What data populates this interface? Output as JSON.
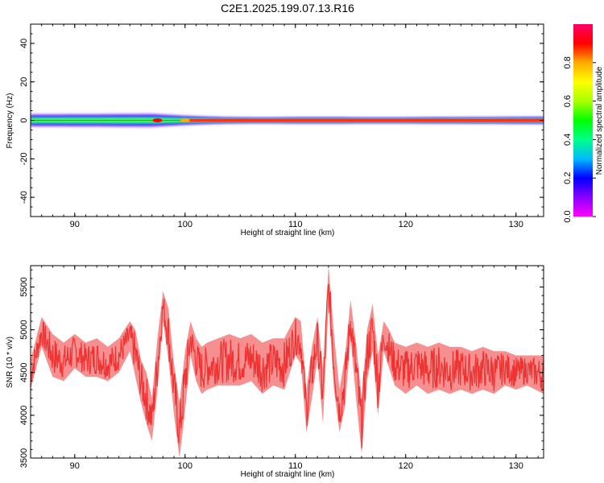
{
  "title": "C2E1.2025.199.07.13.R16",
  "chart_data": [
    {
      "type": "heatmap",
      "xlabel": "Height of straight line (km)",
      "ylabel": "Frequency (Hz)",
      "xlim": [
        86,
        132.5
      ],
      "ylim": [
        -50,
        50
      ],
      "xticks": [
        90,
        100,
        110,
        120,
        130
      ],
      "yticks": [
        -40,
        -20,
        0,
        20,
        40
      ],
      "colorbar": {
        "label": "Normalized spectral amplitude",
        "range": [
          0,
          1
        ],
        "ticks": [
          "0.0",
          "0.2",
          "0.4",
          "0.6",
          "0.8"
        ],
        "colors": [
          "#ff00ff",
          "#8800ff",
          "#0000ff",
          "#00bbff",
          "#00ff88",
          "#00ff00",
          "#aaff00",
          "#ffff00",
          "#ffaa00",
          "#ff0000",
          "#ff0066"
        ]
      },
      "band": {
        "x": [
          86,
          88,
          90,
          92,
          94,
          96,
          97,
          98,
          99,
          100,
          102,
          104,
          106,
          108,
          110,
          112,
          114,
          116,
          118,
          120,
          122,
          124,
          126,
          128,
          130,
          132.5
        ],
        "halfwidth_hz": [
          3.5,
          3.5,
          3.6,
          3.6,
          3.7,
          3.8,
          3.8,
          3.4,
          3.0,
          2.6,
          2.0,
          1.6,
          1.5,
          1.5,
          1.6,
          1.6,
          1.6,
          1.5,
          1.5,
          1.5,
          1.6,
          1.6,
          1.7,
          1.7,
          1.8,
          1.9
        ],
        "peak_amplitude": [
          0.45,
          0.45,
          0.48,
          0.5,
          0.5,
          0.55,
          0.8,
          0.7,
          0.6,
          0.7,
          0.85,
          0.9,
          0.92,
          0.92,
          0.93,
          0.92,
          0.9,
          0.9,
          0.93,
          0.93,
          0.92,
          0.92,
          0.91,
          0.91,
          0.9,
          0.9
        ]
      },
      "hotspots": [
        {
          "x": 97.5,
          "amplitude": 0.85
        },
        {
          "x": 100,
          "amplitude": 0.75
        }
      ]
    },
    {
      "type": "line",
      "xlabel": "Height of straight line (km)",
      "ylabel": "SNR (10 * v/v)",
      "xlim": [
        86,
        132.5
      ],
      "ylim": [
        3500,
        5750
      ],
      "xticks": [
        90,
        100,
        110,
        120,
        130
      ],
      "yticks": [
        3500,
        4000,
        4500,
        5000,
        5500
      ],
      "color": "#ee3333",
      "x": [
        86,
        87,
        88,
        89,
        90,
        91,
        92,
        93,
        94,
        95,
        95.5,
        96,
        96.5,
        97,
        97.5,
        98,
        98.5,
        99,
        99.5,
        100,
        100.5,
        101,
        101.5,
        102,
        103,
        104,
        105,
        106,
        107,
        108,
        109,
        110,
        110.5,
        111,
        111.5,
        112,
        112.5,
        113,
        113.5,
        114,
        114.5,
        115,
        115.5,
        116,
        116.5,
        117,
        117.5,
        118,
        118.5,
        119,
        120,
        121,
        122,
        123,
        124,
        125,
        126,
        127,
        128,
        129,
        130,
        131,
        132.5
      ],
      "y": [
        4450,
        5000,
        4700,
        4600,
        4750,
        4650,
        4700,
        4600,
        4700,
        4950,
        4700,
        4400,
        4200,
        3950,
        4600,
        5300,
        4950,
        4300,
        3750,
        4400,
        4950,
        4650,
        4500,
        4550,
        4600,
        4650,
        4600,
        4650,
        4500,
        4600,
        4550,
        4950,
        4850,
        4000,
        4500,
        4900,
        4200,
        5550,
        4600,
        4050,
        4400,
        5150,
        4500,
        3850,
        4700,
        5000,
        4300,
        4950,
        4800,
        4600,
        4500,
        4600,
        4500,
        4550,
        4500,
        4550,
        4500,
        4550,
        4500,
        4550,
        4500,
        4550,
        4450
      ],
      "upper_envelope": [
        4650,
        5150,
        4950,
        4850,
        4950,
        4850,
        4900,
        4800,
        4900,
        5100,
        5000,
        4650,
        4500,
        4200,
        4900,
        5450,
        5250,
        4600,
        4150,
        4750,
        5100,
        4900,
        4800,
        4850,
        4900,
        4950,
        4900,
        4950,
        4850,
        4900,
        4900,
        5150,
        5100,
        4300,
        4800,
        5150,
        4550,
        5750,
        4950,
        4300,
        4700,
        5350,
        4850,
        4200,
        5000,
        5300,
        4700,
        5100,
        5000,
        4850,
        4800,
        4850,
        4800,
        4850,
        4800,
        4800,
        4750,
        4800,
        4750,
        4750,
        4700,
        4700,
        4700
      ],
      "lower_envelope": [
        4300,
        4800,
        4450,
        4400,
        4550,
        4450,
        4450,
        4400,
        4500,
        4750,
        4450,
        4150,
        3900,
        3700,
        4300,
        5100,
        4650,
        4000,
        3500,
        4050,
        4700,
        4400,
        4250,
        4300,
        4350,
        4350,
        4350,
        4400,
        4250,
        4350,
        4300,
        4700,
        4600,
        3800,
        4200,
        4650,
        3900,
        5300,
        4300,
        3800,
        4100,
        4900,
        4200,
        3550,
        4400,
        4750,
        4000,
        4750,
        4550,
        4350,
        4250,
        4350,
        4250,
        4300,
        4250,
        4300,
        4250,
        4300,
        4250,
        4350,
        4300,
        4350,
        4250
      ]
    }
  ]
}
